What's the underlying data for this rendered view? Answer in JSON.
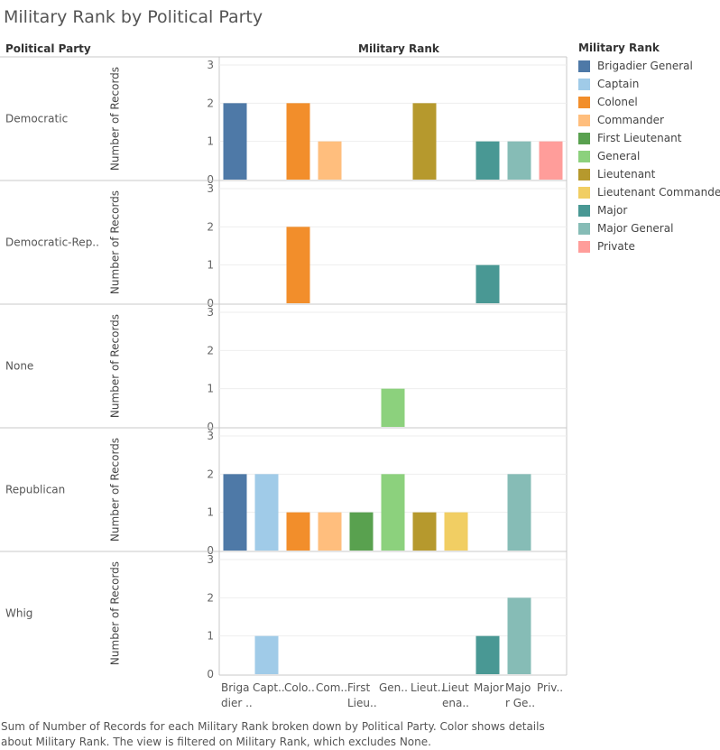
{
  "chart_data": {
    "type": "bar",
    "title": "Military Rank by Political Party",
    "row_header": "Political Party",
    "column_header": "Military Rank",
    "ylabel": "Number of Records",
    "ylim": [
      0,
      3
    ],
    "yticks": [
      "0",
      "1",
      "2",
      "3"
    ],
    "categories": [
      "Brigadier General",
      "Captain",
      "Colonel",
      "Commander",
      "First Lieutenant",
      "General",
      "Lieutenant",
      "Lieutenant Commander",
      "Major",
      "Major General",
      "Private"
    ],
    "tick_labels": [
      [
        "Briga",
        "dier .."
      ],
      [
        "Capt.."
      ],
      [
        "Colo.."
      ],
      [
        "Com.."
      ],
      [
        "First",
        "Lieu.."
      ],
      [
        "Gen.."
      ],
      [
        "Lieut.."
      ],
      [
        "Lieut",
        "ena.."
      ],
      [
        "Major"
      ],
      [
        "Majo",
        "r Ge.."
      ],
      [
        "Priv.."
      ]
    ],
    "colors": [
      "#4e79a7",
      "#a0cbe8",
      "#f28e2b",
      "#ffbe7d",
      "#59a14f",
      "#8cd17d",
      "#b6992d",
      "#f1ce63",
      "#499894",
      "#86bcb6",
      "#ff9d9a"
    ],
    "panels": [
      {
        "party": "Democratic",
        "values": [
          2,
          0,
          2,
          1,
          0,
          0,
          2,
          0,
          1,
          1,
          1
        ]
      },
      {
        "party": "Democratic-Rep..",
        "values": [
          0,
          0,
          2,
          0,
          0,
          0,
          0,
          0,
          1,
          0,
          0
        ]
      },
      {
        "party": "None",
        "values": [
          0,
          0,
          0,
          0,
          0,
          1,
          0,
          0,
          0,
          0,
          0
        ]
      },
      {
        "party": "Republican",
        "values": [
          2,
          2,
          1,
          1,
          1,
          2,
          1,
          1,
          0,
          2,
          0
        ]
      },
      {
        "party": "Whig",
        "values": [
          0,
          1,
          0,
          0,
          0,
          0,
          0,
          0,
          1,
          2,
          0
        ]
      }
    ],
    "legend": {
      "title": "Military Rank",
      "placement": "right",
      "items": [
        "Brigadier General",
        "Captain",
        "Colonel",
        "Commander",
        "First Lieutenant",
        "General",
        "Lieutenant",
        "Lieutenant Commander",
        "Major",
        "Major General",
        "Private"
      ]
    },
    "grid": true
  },
  "caption": "Sum of Number of Records for each Military Rank broken down by Political Party.  Color shows details about Military Rank. The view is filtered on Military Rank, which excludes None."
}
